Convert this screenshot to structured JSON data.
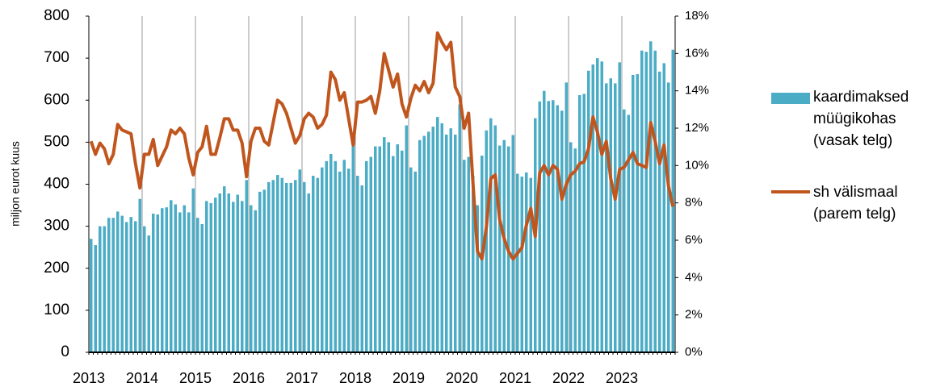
{
  "chart_data": {
    "type": "bar_line",
    "y_axis_label": "miljon eurot kuus",
    "categories": [
      "2013",
      null,
      null,
      null,
      null,
      null,
      null,
      null,
      null,
      null,
      null,
      null,
      "2014",
      null,
      null,
      null,
      null,
      null,
      null,
      null,
      null,
      null,
      null,
      null,
      "2015",
      null,
      null,
      null,
      null,
      null,
      null,
      null,
      null,
      null,
      null,
      null,
      "2016",
      null,
      null,
      null,
      null,
      null,
      null,
      null,
      null,
      null,
      null,
      null,
      "2017",
      null,
      null,
      null,
      null,
      null,
      null,
      null,
      null,
      null,
      null,
      null,
      "2018",
      null,
      null,
      null,
      null,
      null,
      null,
      null,
      null,
      null,
      null,
      null,
      "2019",
      null,
      null,
      null,
      null,
      null,
      null,
      null,
      null,
      null,
      null,
      null,
      "2020",
      null,
      null,
      null,
      null,
      null,
      null,
      null,
      null,
      null,
      null,
      null,
      "2021",
      null,
      null,
      null,
      null,
      null,
      null,
      null,
      null,
      null,
      null,
      null,
      "2022",
      null,
      null,
      null,
      null,
      null,
      null,
      null,
      null,
      null,
      null,
      null,
      "2023",
      null,
      null,
      null,
      null,
      null,
      null,
      null,
      null,
      null,
      null,
      null
    ],
    "series": [
      {
        "name": "kaardimaksed müügikohas (vasak telg)",
        "type": "bar",
        "color": "#4bacc6",
        "axis": "y",
        "values": [
          270,
          255,
          300,
          300,
          320,
          320,
          335,
          325,
          310,
          322,
          312,
          365,
          300,
          278,
          330,
          328,
          343,
          345,
          362,
          352,
          333,
          350,
          333,
          390,
          320,
          305,
          360,
          355,
          368,
          378,
          395,
          378,
          358,
          375,
          360,
          410,
          350,
          338,
          382,
          387,
          405,
          410,
          422,
          415,
          403,
          403,
          410,
          435,
          405,
          378,
          420,
          415,
          440,
          455,
          472,
          455,
          430,
          458,
          437,
          505,
          420,
          397,
          455,
          465,
          490,
          490,
          512,
          500,
          467,
          495,
          480,
          540,
          440,
          430,
          505,
          515,
          525,
          537,
          560,
          545,
          518,
          533,
          518,
          590,
          458,
          465,
          420,
          350,
          468,
          528,
          557,
          540,
          492,
          505,
          490,
          517,
          425,
          418,
          428,
          415,
          557,
          597,
          622,
          598,
          600,
          588,
          575,
          642,
          500,
          485,
          612,
          615,
          670,
          685,
          700,
          692,
          640,
          652,
          640,
          690,
          578,
          565,
          660,
          662,
          718,
          715,
          740,
          718,
          668,
          688,
          642,
          720
        ]
      },
      {
        "name": "sh välismaal (parem telg)",
        "type": "line",
        "color": "#c0561e",
        "axis": "y2",
        "values": [
          11.3,
          10.6,
          11.2,
          10.9,
          10.1,
          10.6,
          12.2,
          11.9,
          11.8,
          11.7,
          10.1,
          8.8,
          10.6,
          10.6,
          11.4,
          10.0,
          10.5,
          11.0,
          11.9,
          11.7,
          12.0,
          11.7,
          10.4,
          9.5,
          10.7,
          11.0,
          12.1,
          10.6,
          10.6,
          11.5,
          12.5,
          12.5,
          11.9,
          11.9,
          11.2,
          9.4,
          11.3,
          12.0,
          12.0,
          11.3,
          11.1,
          12.3,
          13.5,
          13.3,
          12.8,
          12.0,
          11.2,
          11.6,
          12.5,
          12.8,
          12.6,
          12.0,
          12.2,
          12.7,
          15.0,
          14.6,
          13.5,
          13.9,
          12.5,
          11.1,
          13.4,
          13.4,
          13.5,
          13.7,
          12.8,
          14.0,
          16.0,
          15.1,
          14.2,
          14.9,
          13.3,
          12.6,
          13.6,
          14.3,
          14.0,
          14.5,
          13.9,
          14.4,
          17.1,
          16.6,
          16.2,
          16.6,
          14.2,
          13.7,
          12.0,
          12.8,
          9.0,
          5.4,
          5.0,
          6.7,
          9.3,
          9.5,
          7.1,
          6.1,
          5.4,
          5.0,
          5.3,
          5.6,
          6.8,
          7.7,
          6.2,
          9.6,
          10.0,
          9.5,
          10.0,
          9.8,
          8.2,
          9.0,
          9.5,
          9.7,
          10.1,
          10.2,
          10.9,
          12.6,
          11.8,
          10.6,
          11.3,
          9.3,
          8.2,
          9.8,
          9.9,
          10.3,
          10.7,
          10.1,
          10.0,
          9.9,
          12.3,
          11.3,
          10.1,
          11.1,
          8.9,
          7.8
        ]
      }
    ],
    "ylim": [
      0,
      800
    ],
    "yticks": [
      0,
      100,
      200,
      300,
      400,
      500,
      600,
      700,
      800
    ],
    "y2lim": [
      0,
      18
    ],
    "y2ticks": [
      {
        "value": 0,
        "label": "0%"
      },
      {
        "value": 2,
        "label": "2%"
      },
      {
        "value": 4,
        "label": "4%"
      },
      {
        "value": 6,
        "label": "6%"
      },
      {
        "value": 8,
        "label": "8%"
      },
      {
        "value": 10,
        "label": "10%"
      },
      {
        "value": 12,
        "label": "12%"
      },
      {
        "value": 14,
        "label": "14%"
      },
      {
        "value": 16,
        "label": "16%"
      },
      {
        "value": 18,
        "label": "18%"
      }
    ],
    "grid": true,
    "legend": "right"
  }
}
